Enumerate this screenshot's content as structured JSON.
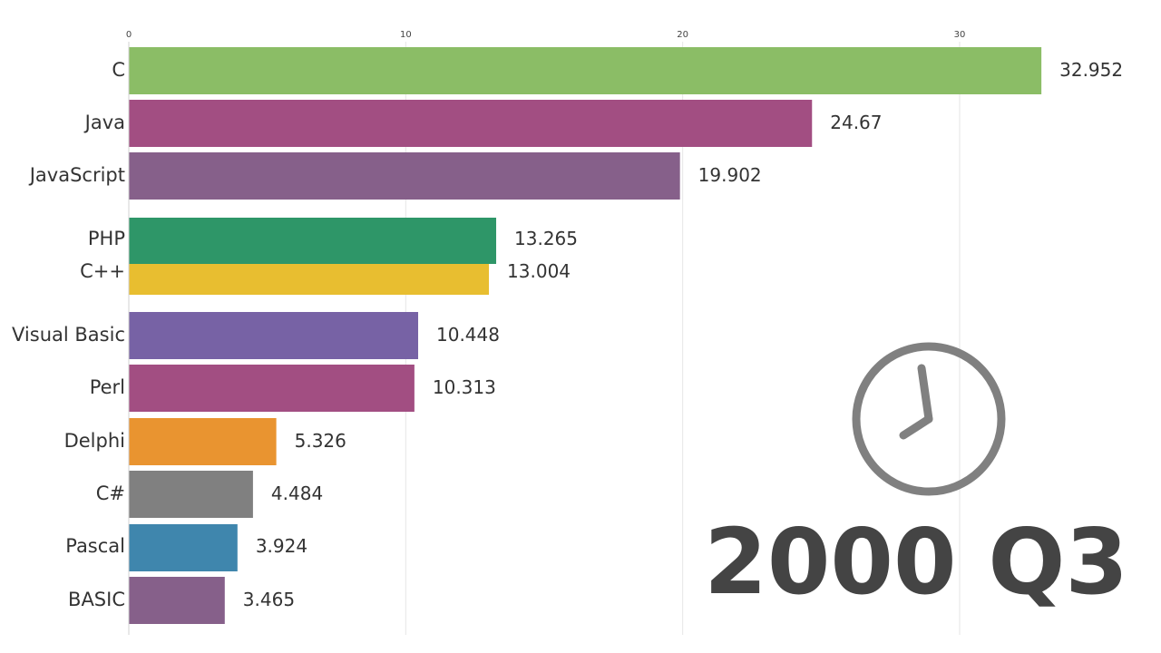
{
  "colors": {
    "C": "#8bbd66",
    "Java": "#a24e82",
    "JavaScript": "#86608a",
    "PHP": "#2e9668",
    "C++": "#e8be30",
    "Visual Basic": "#7762a5",
    "Perl": "#a24e82",
    "Delphi": "#e99430",
    "C#": "#808080",
    "Pascal": "#3f86ad",
    "BASIC": "#86608a"
  },
  "period": "2000 Q3",
  "clock_icon": "clock-icon",
  "chart_data": {
    "type": "bar",
    "orientation": "horizontal",
    "title": "",
    "xlabel": "",
    "ylabel": "",
    "xlim": [
      0,
      33
    ],
    "x_ticks": [
      "0",
      "10",
      "20",
      "30"
    ],
    "grid": true,
    "categories": [
      "C",
      "Java",
      "JavaScript",
      "PHP",
      "C++",
      "Visual Basic",
      "Perl",
      "Delphi",
      "C#",
      "Pascal",
      "BASIC"
    ],
    "values": [
      32.952,
      24.67,
      19.902,
      13.265,
      13.004,
      10.448,
      10.313,
      5.326,
      4.484,
      3.924,
      3.465
    ],
    "value_labels": [
      "32.952",
      "24.67",
      "19.902",
      "13.265",
      "13.004",
      "10.448",
      "10.313",
      "5.326",
      "4.484",
      "3.924",
      "3.465"
    ]
  }
}
